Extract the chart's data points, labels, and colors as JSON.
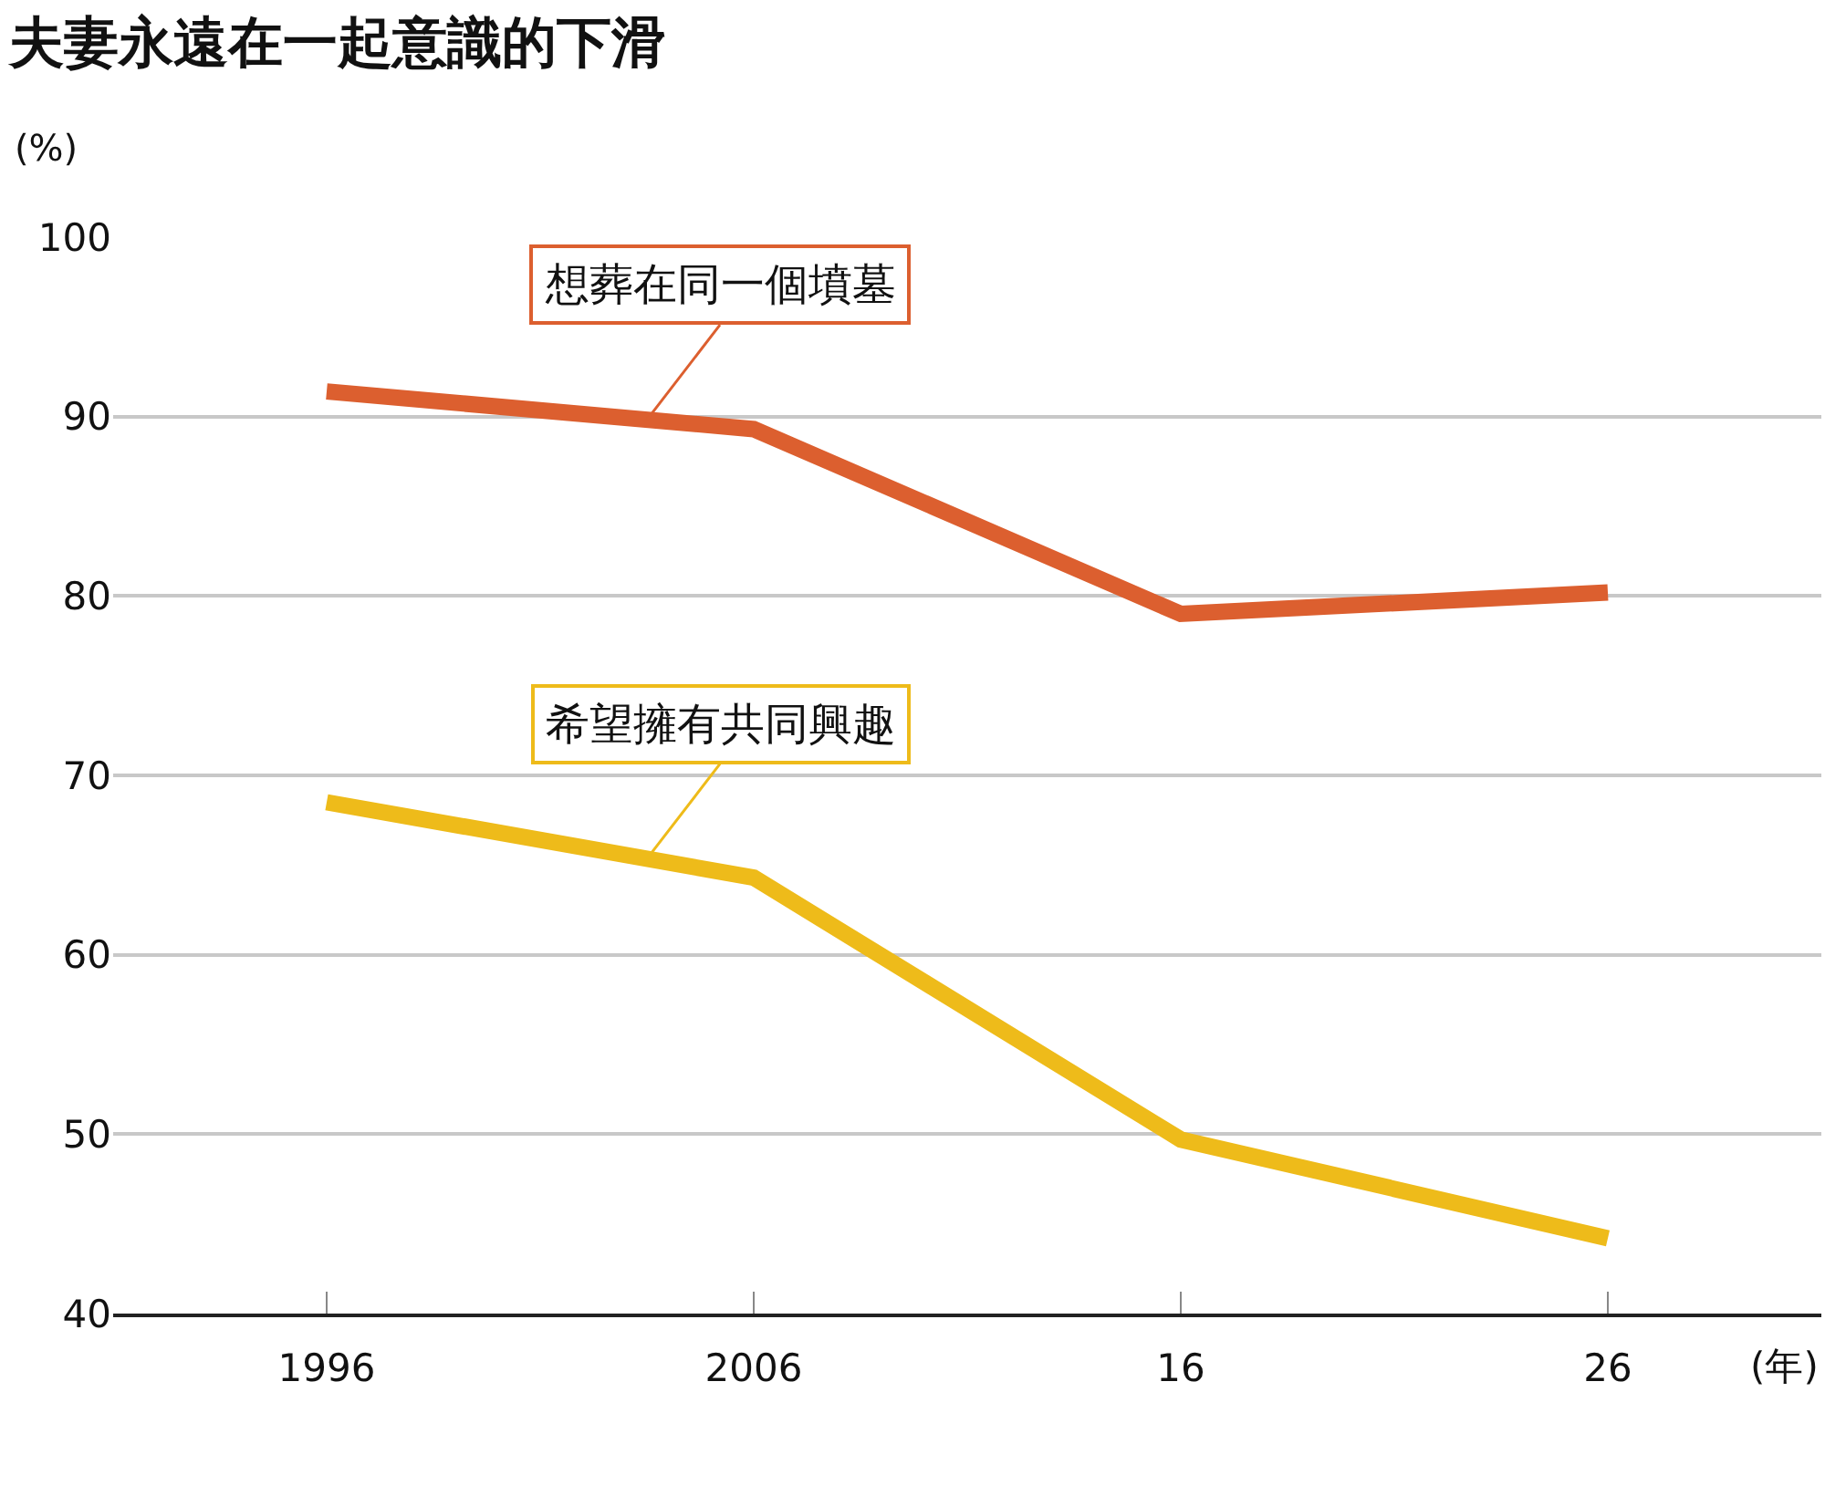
{
  "chart_data": {
    "type": "line",
    "title": "夫妻永遠在一起意識的下滑",
    "ylabel": "(%)",
    "xlabel": "(年)",
    "categories": [
      "1996",
      "2006",
      "16",
      "26"
    ],
    "series": [
      {
        "name": "想葬在同一個墳墓",
        "color": "#dc5f2f",
        "values": [
          91.4,
          89.3,
          79.0,
          80.2
        ]
      },
      {
        "name": "希望擁有共同興趣",
        "color": "#eebb1a",
        "values": [
          68.5,
          64.3,
          49.7,
          44.2
        ]
      }
    ],
    "ylim": [
      40,
      100
    ],
    "yticks": [
      40,
      50,
      60,
      70,
      80,
      90,
      100
    ],
    "grid": "y",
    "legend": false,
    "marker": "none",
    "line_style": "solid"
  }
}
